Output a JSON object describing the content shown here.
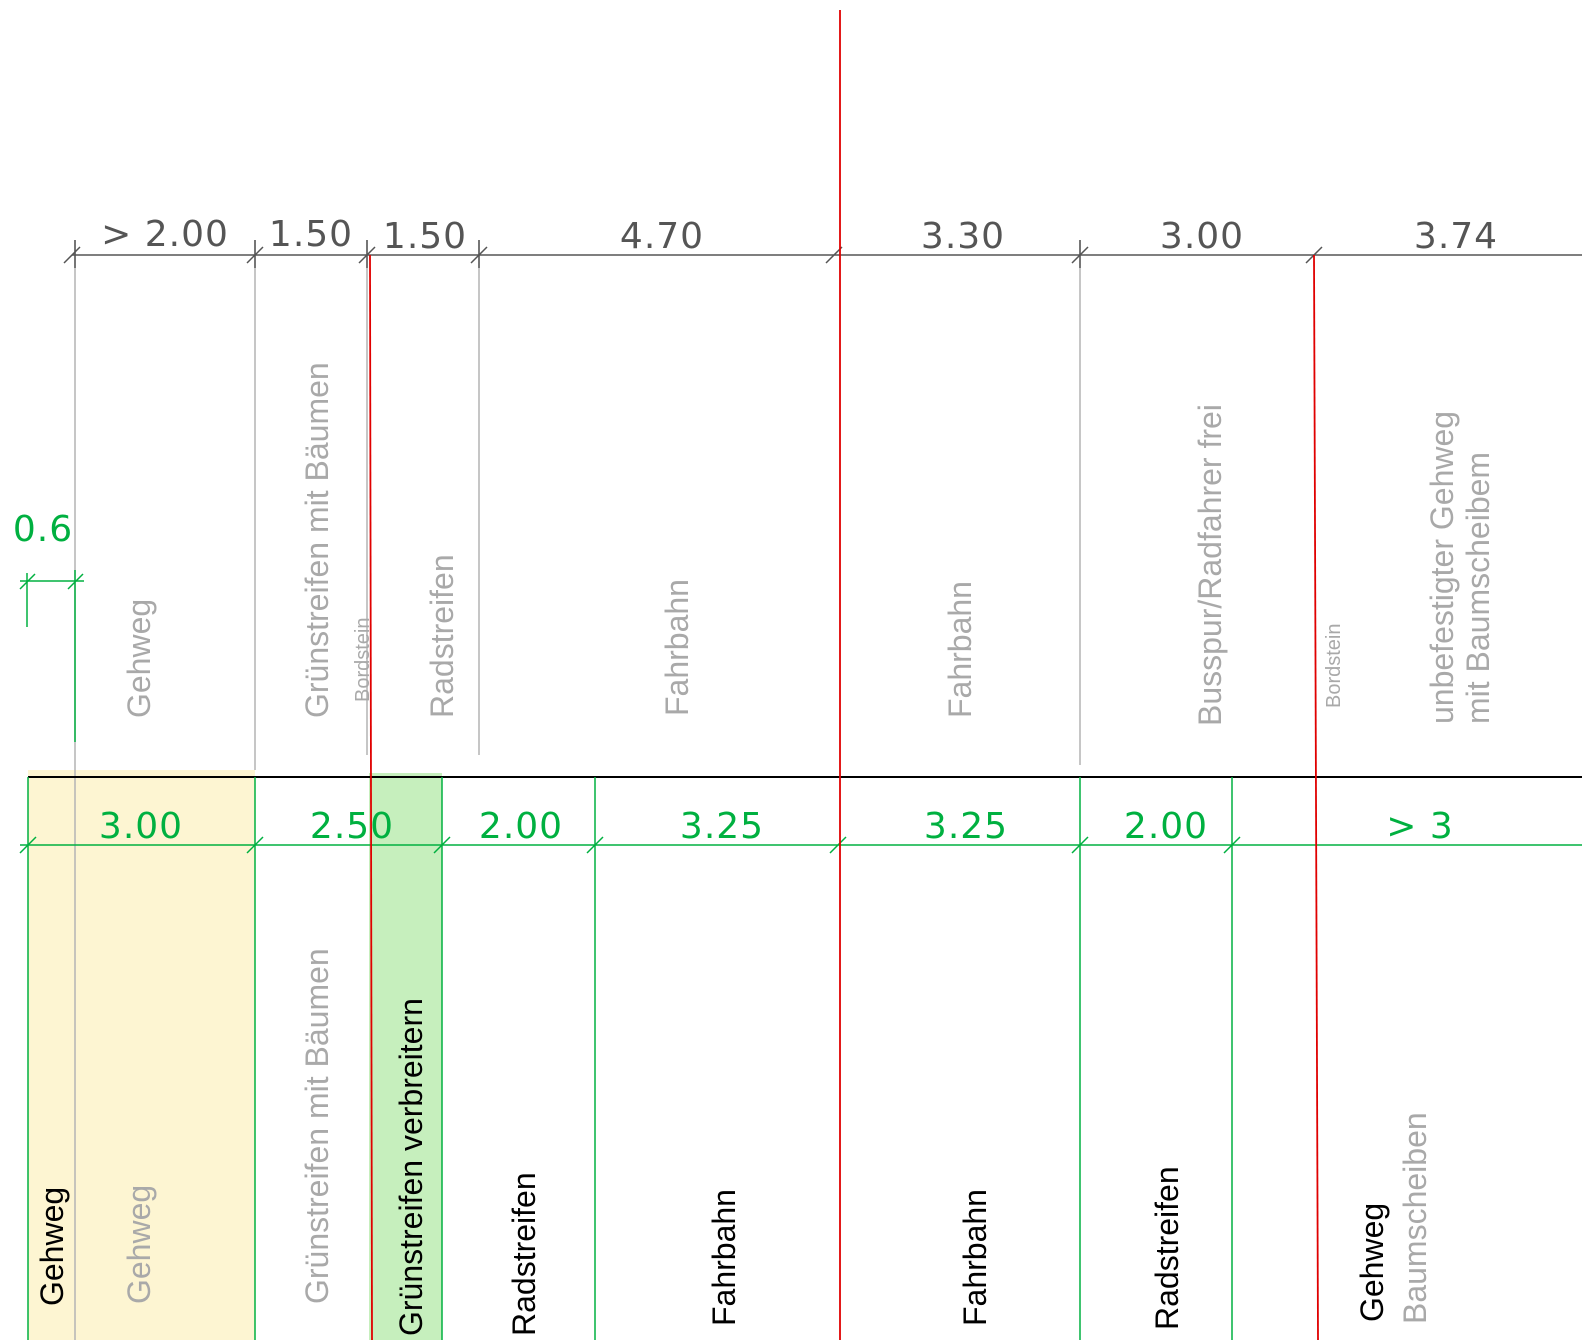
{
  "colors": {
    "axis": "#e00000",
    "dim_existing": "#555555",
    "dim_planned": "#00b040",
    "divider_existing": "#b4b4b4",
    "highlight_yellow": "#fdf5d2",
    "highlight_green": "#c6efbd",
    "label_existing": "#a9a9a9",
    "label_planned": "#000000"
  },
  "existing": {
    "dimensions": [
      "> 2.00",
      "1.50",
      "1.50",
      "4.70",
      "3.30",
      "3.00",
      "3.74"
    ],
    "labels": {
      "gehweg": "Gehweg",
      "gruenstreifen": "Grünstreifen mit Bäumen",
      "bordstein_left": "Bordstein",
      "radstreifen": "Radstreifen",
      "fahrbahn_left": "Fahrbahn",
      "fahrbahn_right": "Fahrbahn",
      "busspur": "Busspur/Radfahrer frei",
      "bordstein_right": "Bordstein",
      "unbefestigt_line1": "unbefestigter Gehweg",
      "unbefestigt_line2": "mit Baumscheibem"
    },
    "offset_dimension": "0.6"
  },
  "planned": {
    "dimensions": [
      "3.00",
      "2.50",
      "2.00",
      "3.25",
      "3.25",
      "2.00",
      "> 3"
    ],
    "labels": {
      "gehweg_black": "Gehweg",
      "gehweg_gray": "Gehweg",
      "gruenstreifen_gray": "Grünstreifen mit Bäumen",
      "gruenstreifen_verbreitern": "Grünstreifen verbreitern",
      "radstreifen_left": "Radstreifen",
      "fahrbahn_left": "Fahrbahn",
      "fahrbahn_right": "Fahrbahn",
      "radstreifen_right": "Radstreifen",
      "gehweg_right": "Gehweg",
      "baumscheiben": "Baumscheiben"
    }
  }
}
